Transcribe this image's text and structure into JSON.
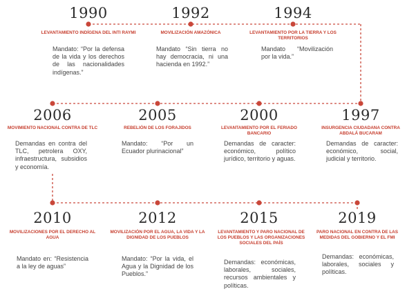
{
  "events": [
    {
      "year": "1990",
      "title": "LEVANTAMIENTO INDÍGENA DEL INTI RAYMI",
      "body": "Mandato: “Por la defensa de la vida y los derechos de las nacionalidades indígenas.”"
    },
    {
      "year": "1992",
      "title": "MOVILIZACIÓN AMAZÓNICA",
      "body": "Mandato “Sin tierra no hay democracia, ni una hacienda en 1992.”"
    },
    {
      "year": "1994",
      "title": "LEVANTAMIENTO POR LA TIERRA Y LOS TERRITORIOS",
      "body": "Mandato “Movilización por la vida.”"
    },
    {
      "year": "2006",
      "title": "MOVIMIENTO NACIONAL CONTRA DE TLC",
      "body": "Demandas en contra del TLC, petrolera OXY, infraestructura, subsidios y economía."
    },
    {
      "year": "2005",
      "title": "REBELIÓN DE LOS FORAJIDOS",
      "body": "Mandato: “Por un Ecuador plurinacional”"
    },
    {
      "year": "2000",
      "title": "LEVANTAMIENTO POR EL FERIADO BANCARIO",
      "body": "Demandas de caracter: económico, político jurídico, territorio y aguas."
    },
    {
      "year": "1997",
      "title": "INSURGENCIA CIUDADANA CONTRA ABDALÁ BUCARAM",
      "body": "Demandas de caracter: económico, social, judicial y territorio."
    },
    {
      "year": "2010",
      "title": "MOVILIZACIONES POR EL DERECHO AL AGUA",
      "body": "Mandato en: “Resistencia a la ley de aguas”"
    },
    {
      "year": "2012",
      "title": "MOVILIZACIÓN POR EL AGUA, LA VIDA Y LA DIGNIDAD DE LOS PUEBLOS",
      "body": "Mandato: “Por la vida, el Agua y la Dignidad de los Pueblos.”"
    },
    {
      "year": "2015",
      "title": "LEVANTAMIENTO Y PARO NACIONAL DE LOS PUEBLOS Y LAS ORGANIZACIONES SOCIALES DEL PAÍS",
      "body": "Demandas: económicas, laborales, sociales, recursos ambientales y políticas."
    },
    {
      "year": "2019",
      "title": "PARO NACIONAL EN CONTRA DE LAS MEDIDAS DEL GOBIERNO Y EL FMI",
      "body": "Demandas: económicas, laborales, sociales y políticas."
    }
  ],
  "colors": {
    "accent": "#c9473a",
    "title": "#c63d2d",
    "year": "#2b2b2b",
    "text": "#444444"
  }
}
